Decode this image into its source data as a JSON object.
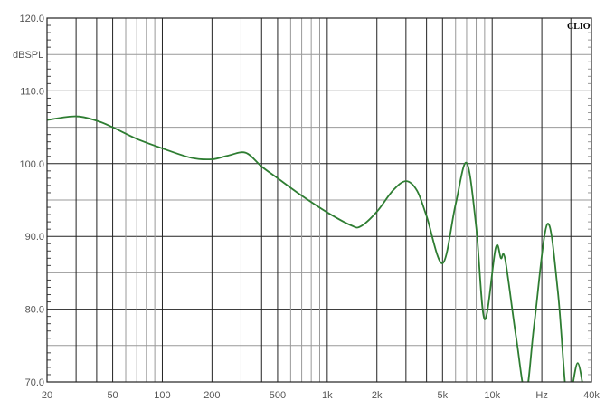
{
  "chart_data": {
    "type": "line",
    "title": "",
    "brand": "CLIO",
    "ylabel": "dBSPL",
    "xlabel": "Hz",
    "x_scale": "log",
    "xlim": [
      20,
      40000
    ],
    "ylim": [
      70,
      120
    ],
    "grid": true,
    "y_ticks": [
      "120.0",
      "110.0",
      "100.0",
      "90.0",
      "80.0",
      "70.0"
    ],
    "x_ticks": [
      {
        "value": 20,
        "label": "20"
      },
      {
        "value": 50,
        "label": "50"
      },
      {
        "value": 100,
        "label": "100"
      },
      {
        "value": 200,
        "label": "200"
      },
      {
        "value": 500,
        "label": "500"
      },
      {
        "value": 1000,
        "label": "1k"
      },
      {
        "value": 2000,
        "label": "2k"
      },
      {
        "value": 5000,
        "label": "5k"
      },
      {
        "value": 10000,
        "label": "10k"
      },
      {
        "value": 20000,
        "label": "Hz"
      },
      {
        "value": 40000,
        "label": "40k"
      }
    ],
    "series": [
      {
        "color": "#2e7d32",
        "x": [
          20,
          30,
          40,
          50,
          70,
          100,
          150,
          200,
          250,
          320,
          400,
          500,
          700,
          1000,
          1400,
          1600,
          2000,
          2500,
          3000,
          3500,
          4000,
          5000,
          6000,
          7000,
          8000,
          9000,
          10500,
          11300,
          12000,
          14000,
          16000,
          18000,
          21600,
          25000,
          28000,
          30000,
          33000,
          36000
        ],
        "y": [
          106,
          106.5,
          105.9,
          105,
          103.4,
          102.1,
          100.8,
          100.6,
          101.1,
          101.5,
          99.6,
          98,
          95.6,
          93.3,
          91.5,
          91.4,
          93.4,
          96.3,
          97.6,
          96.3,
          92.8,
          86.3,
          94.4,
          100.1,
          91.3,
          78.6,
          88.4,
          87.0,
          86.8,
          76,
          68.5,
          78,
          91.7,
          82.5,
          68.5,
          68.5,
          72.6,
          68.5
        ]
      }
    ]
  }
}
